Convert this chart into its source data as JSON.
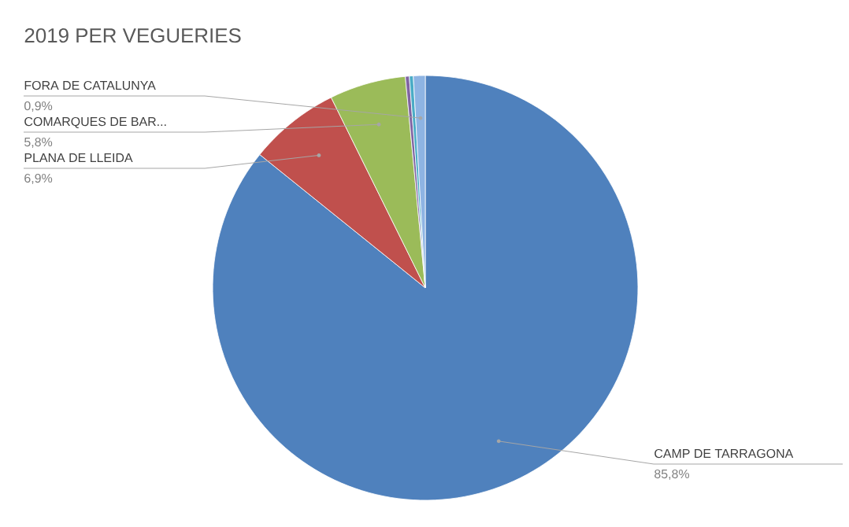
{
  "chart_data": {
    "type": "pie",
    "title": "2019 PER VEGUERIES",
    "categories": [
      "CAMP DE TARRAGONA",
      "PLANA DE LLEIDA",
      "COMARQUES DE BAR...",
      null,
      null,
      "FORA DE CATALUNYA"
    ],
    "values": [
      85.8,
      6.9,
      5.8,
      0.3,
      0.3,
      0.9
    ],
    "value_labels": [
      "85,8%",
      "6,9%",
      "5,8%",
      null,
      null,
      "0,9%"
    ],
    "colors": [
      "#4f81bd",
      "#c0504d",
      "#9bbb59",
      "#8064a2",
      "#4bacc6",
      "#8eb4e3"
    ]
  }
}
